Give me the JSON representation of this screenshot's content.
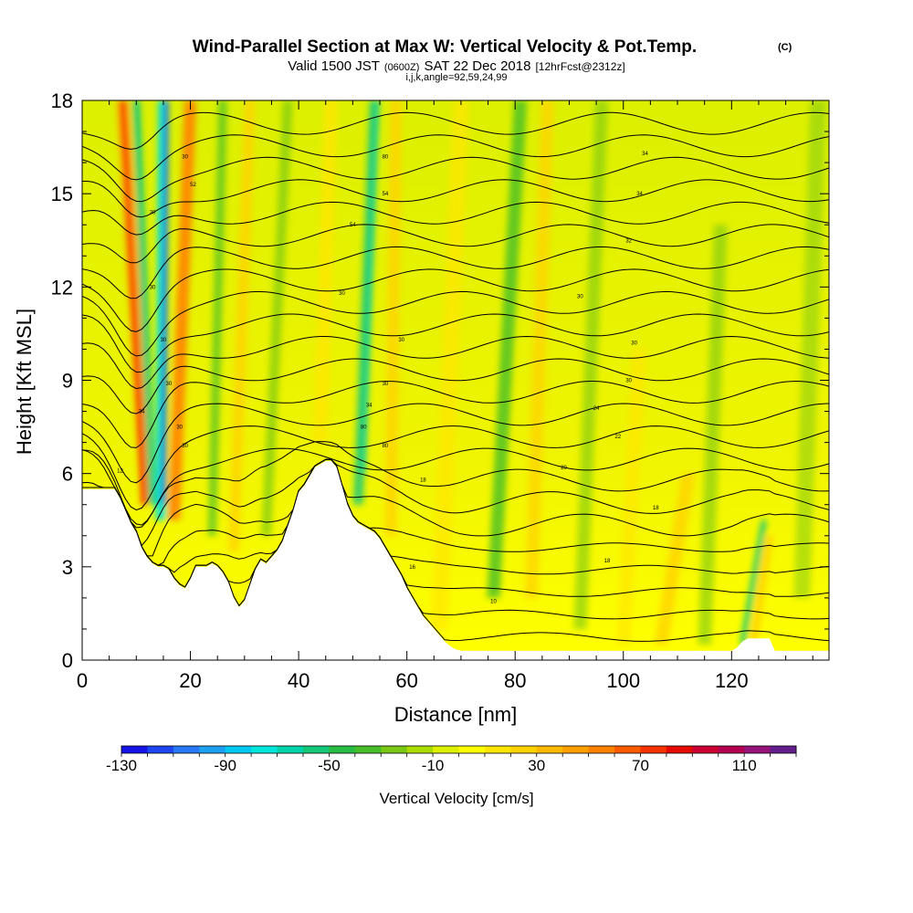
{
  "chart_data": {
    "type": "heatmap",
    "title": "Wind-Parallel Section at Max W: Vertical Velocity & Pot.Temp.",
    "title_mark": "(C)",
    "subtitle_parts": [
      "Valid 1500 JST",
      "(0600Z)",
      "SAT 22 Dec 2018",
      "[12hrFcst@2312z]"
    ],
    "subtitle_2": "i,j,k,angle=92,59,24,99",
    "xlabel": "Distance [nm]",
    "ylabel": "Height [Kft MSL]",
    "xlim": [
      0,
      138
    ],
    "ylim": [
      0,
      18
    ],
    "x_ticks": [
      "0",
      "20",
      "40",
      "60",
      "80",
      "100",
      "120"
    ],
    "y_ticks": [
      "0",
      "3",
      "6",
      "9",
      "12",
      "15",
      "18"
    ],
    "colorbar": {
      "label": "Vertical Velocity [cm/s]",
      "range": [
        -130,
        130
      ],
      "tick_labels": [
        "-130",
        "-90",
        "-50",
        "-10",
        "30",
        "70",
        "110"
      ],
      "colors": [
        "#1414e6",
        "#1e46f0",
        "#2878f5",
        "#1ea0f0",
        "#00c8f0",
        "#00e6dc",
        "#00d2aa",
        "#14c878",
        "#28be46",
        "#46be28",
        "#78c814",
        "#aadc00",
        "#dcf000",
        "#ffff00",
        "#ffe600",
        "#ffd200",
        "#ffb900",
        "#ffa000",
        "#ff8200",
        "#ff5a00",
        "#f53200",
        "#e60a00",
        "#cd0032",
        "#b40050",
        "#961478",
        "#641e8c"
      ]
    },
    "terrain": [
      [
        0,
        5.5
      ],
      [
        2,
        5.5
      ],
      [
        4,
        5.5
      ],
      [
        6,
        5.5
      ],
      [
        7,
        5.2
      ],
      [
        8,
        4.8
      ],
      [
        9,
        4.4
      ],
      [
        10,
        4.1
      ],
      [
        11,
        3.6
      ],
      [
        12,
        3.3
      ],
      [
        13,
        3.1
      ],
      [
        14,
        3.0
      ],
      [
        15,
        3.0
      ],
      [
        16,
        2.9
      ],
      [
        17,
        2.6
      ],
      [
        18,
        2.4
      ],
      [
        19,
        2.3
      ],
      [
        20,
        2.6
      ],
      [
        21,
        3.0
      ],
      [
        22,
        3.0
      ],
      [
        23,
        3.0
      ],
      [
        24,
        3.1
      ],
      [
        25,
        3.0
      ],
      [
        26,
        2.8
      ],
      [
        27,
        2.5
      ],
      [
        28,
        2.0
      ],
      [
        29,
        1.7
      ],
      [
        30,
        1.9
      ],
      [
        31,
        2.4
      ],
      [
        32,
        2.9
      ],
      [
        33,
        3.2
      ],
      [
        34,
        3.1
      ],
      [
        35,
        3.3
      ],
      [
        36,
        3.5
      ],
      [
        37,
        3.8
      ],
      [
        38,
        4.3
      ],
      [
        39,
        4.8
      ],
      [
        40,
        5.4
      ],
      [
        41,
        5.6
      ],
      [
        42,
        5.9
      ],
      [
        43,
        6.2
      ],
      [
        44,
        6.3
      ],
      [
        45,
        6.4
      ],
      [
        46,
        6.4
      ],
      [
        47,
        6.2
      ],
      [
        48,
        5.6
      ],
      [
        49,
        5.0
      ],
      [
        50,
        4.6
      ],
      [
        51,
        4.4
      ],
      [
        52,
        4.3
      ],
      [
        53,
        4.2
      ],
      [
        54,
        4.1
      ],
      [
        55,
        3.9
      ],
      [
        56,
        3.6
      ],
      [
        57,
        3.3
      ],
      [
        58,
        3.0
      ],
      [
        59,
        2.7
      ],
      [
        60,
        2.3
      ],
      [
        61,
        2.0
      ],
      [
        62,
        1.7
      ],
      [
        63,
        1.4
      ],
      [
        64,
        1.2
      ],
      [
        65,
        1.0
      ],
      [
        66,
        0.8
      ],
      [
        67,
        0.6
      ],
      [
        68,
        0.45
      ],
      [
        69,
        0.35
      ],
      [
        70,
        0.3
      ],
      [
        120,
        0.3
      ],
      [
        121,
        0.4
      ],
      [
        122,
        0.6
      ],
      [
        123,
        0.7
      ],
      [
        127,
        0.7
      ],
      [
        128,
        0.3
      ],
      [
        138,
        0.3
      ]
    ],
    "potential_temperature_contours": {
      "labels": [
        {
          "x": 19,
          "y": 16.2,
          "text": "30"
        },
        {
          "x": 20.5,
          "y": 15.3,
          "text": "52"
        },
        {
          "x": 13,
          "y": 14.4,
          "text": "30"
        },
        {
          "x": 13,
          "y": 12.0,
          "text": "30"
        },
        {
          "x": 15,
          "y": 10.3,
          "text": "30"
        },
        {
          "x": 16,
          "y": 8.9,
          "text": "30"
        },
        {
          "x": 11,
          "y": 8.0,
          "text": "34"
        },
        {
          "x": 18,
          "y": 7.5,
          "text": "30"
        },
        {
          "x": 19,
          "y": 6.9,
          "text": "30"
        },
        {
          "x": 7,
          "y": 6.1,
          "text": "12"
        },
        {
          "x": 56,
          "y": 16.2,
          "text": "80"
        },
        {
          "x": 56,
          "y": 15.0,
          "text": "54"
        },
        {
          "x": 50,
          "y": 14.0,
          "text": "54"
        },
        {
          "x": 48,
          "y": 11.8,
          "text": "30"
        },
        {
          "x": 59,
          "y": 10.3,
          "text": "30"
        },
        {
          "x": 56,
          "y": 8.9,
          "text": "30"
        },
        {
          "x": 53,
          "y": 8.2,
          "text": "34"
        },
        {
          "x": 52,
          "y": 7.5,
          "text": "80"
        },
        {
          "x": 56,
          "y": 6.9,
          "text": "80"
        },
        {
          "x": 63,
          "y": 5.8,
          "text": "18"
        },
        {
          "x": 104,
          "y": 16.3,
          "text": "34"
        },
        {
          "x": 103,
          "y": 15.0,
          "text": "34"
        },
        {
          "x": 101,
          "y": 13.5,
          "text": "32"
        },
        {
          "x": 92,
          "y": 11.7,
          "text": "30"
        },
        {
          "x": 102,
          "y": 10.2,
          "text": "30"
        },
        {
          "x": 101,
          "y": 9.0,
          "text": "30"
        },
        {
          "x": 95,
          "y": 8.1,
          "text": "24"
        },
        {
          "x": 99,
          "y": 7.2,
          "text": "22"
        },
        {
          "x": 89,
          "y": 6.2,
          "text": "20"
        },
        {
          "x": 106,
          "y": 4.9,
          "text": "18"
        },
        {
          "x": 97,
          "y": 3.2,
          "text": "18"
        },
        {
          "x": 61,
          "y": 3.0,
          "text": "16"
        },
        {
          "x": 76,
          "y": 1.9,
          "text": "10"
        }
      ]
    }
  }
}
